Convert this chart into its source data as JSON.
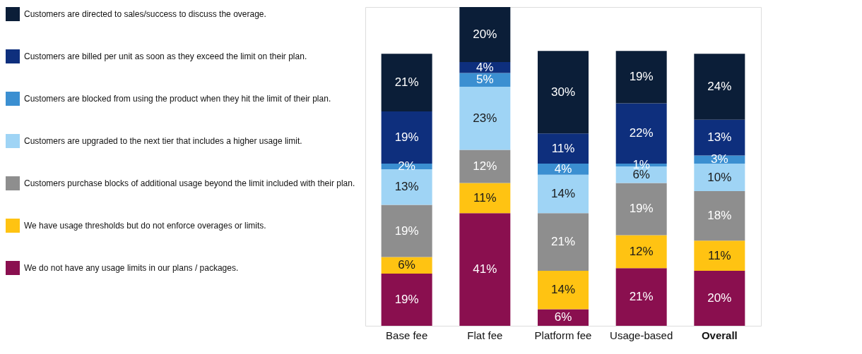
{
  "chart_data": {
    "type": "bar",
    "stacked": true,
    "legend": "left",
    "grid": false,
    "categories": [
      "Base fee",
      "Flat fee",
      "Platform fee",
      "Usage-based",
      "Overall"
    ],
    "series": [
      {
        "name": "We do not have any usage limits in our plans / packages.",
        "color": "#8a0f4f",
        "values": [
          19,
          41,
          6,
          21,
          20
        ],
        "value_labels": [
          "19%",
          "41%",
          "6%",
          "21%",
          "20%"
        ]
      },
      {
        "name": "We have usage thresholds but do not enforce overages or limits.",
        "color": "#ffc312",
        "values": [
          6,
          11,
          14,
          12,
          11
        ],
        "value_labels": [
          "6%",
          "11%",
          "14%",
          "12%",
          "11%"
        ]
      },
      {
        "name": "Customers purchase blocks of additional usage beyond the limit included with their plan.",
        "color": "#8e8e8e",
        "values": [
          19,
          12,
          21,
          19,
          18
        ],
        "value_labels": [
          "19%",
          "12%",
          "21%",
          "19%",
          "18%"
        ]
      },
      {
        "name": "Customers are upgraded to the next tier that includes a higher usage limit.",
        "color": "#9fd4f5",
        "values": [
          13,
          23,
          14,
          6,
          10
        ],
        "value_labels": [
          "13%",
          "23%",
          "14%",
          "6%",
          "10%"
        ]
      },
      {
        "name": "Customers are blocked from using the product when they hit the limit of their plan.",
        "color": "#3b8fd1",
        "values": [
          2,
          5,
          4,
          1,
          3
        ],
        "value_labels": [
          "2%",
          "5%",
          "4%",
          "1%",
          "3%"
        ]
      },
      {
        "name": "Customers are billed per unit as soon as they exceed the limit on their plan.",
        "color": "#0e2f7d",
        "values": [
          19,
          4,
          11,
          22,
          13
        ],
        "value_labels": [
          "19%",
          "4%",
          "11%",
          "22%",
          "13%"
        ]
      },
      {
        "name": "Customers are directed to sales/success to discuss the overage.",
        "color": "#0b1e38",
        "values": [
          21,
          20,
          30,
          19,
          24
        ],
        "value_labels": [
          "21%",
          "20%",
          "30%",
          "19%",
          "24%"
        ]
      }
    ]
  }
}
